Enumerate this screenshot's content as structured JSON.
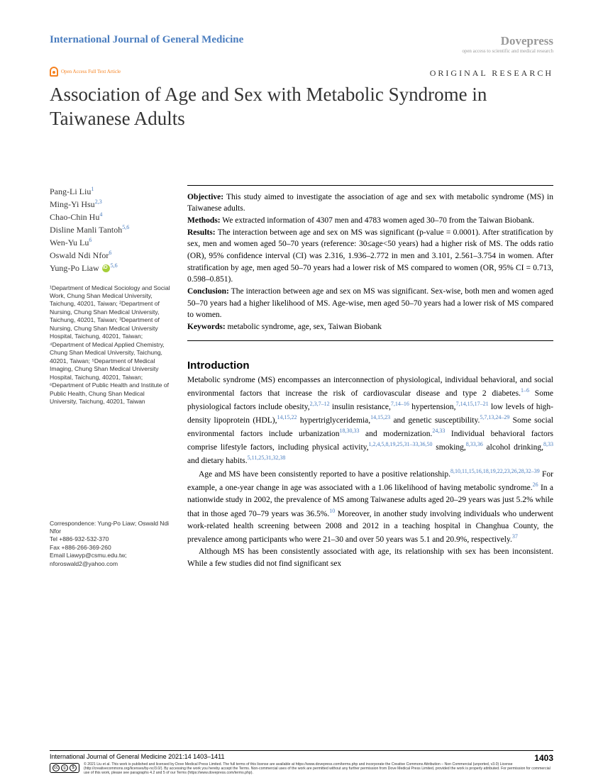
{
  "header": {
    "journal": "International Journal of General Medicine",
    "publisher": "Dovepress",
    "tagline": "open access to scientific and medical research",
    "oa_label": "Open Access Full Text Article",
    "article_type": "ORIGINAL RESEARCH"
  },
  "title": "Association of Age and Sex with Metabolic Syndrome in Taiwanese Adults",
  "authors": [
    {
      "name": "Pang-Li Liu",
      "aff": "1"
    },
    {
      "name": "Ming-Yi Hsu",
      "aff": "2,3"
    },
    {
      "name": "Chao-Chin Hu",
      "aff": "4"
    },
    {
      "name": "Disline Manli Tantoh",
      "aff": "5,6"
    },
    {
      "name": "Wen-Yu Lu",
      "aff": "6"
    },
    {
      "name": "Oswald Ndi Nfor",
      "aff": "6"
    },
    {
      "name": "Yung-Po Liaw",
      "aff": "5,6",
      "orcid": true
    }
  ],
  "affiliations": "¹Department of Medical Sociology and Social Work, Chung Shan Medical University, Taichung, 40201, Taiwan; ²Department of Nursing, Chung Shan Medical University, Taichung, 40201, Taiwan; ³Department of Nursing, Chung Shan Medical University Hospital, Taichung, 40201, Taiwan; ⁴Department of Medical Applied Chemistry, Chung Shan Medical University, Taichung, 40201, Taiwan; ⁵Department of Medical Imaging, Chung Shan Medical University Hospital, Taichung, 40201, Taiwan; ⁶Department of Public Health and Institute of Public Health, Chung Shan Medical University, Taichung, 40201, Taiwan",
  "abstract": {
    "objective_label": "Objective:",
    "objective": " This study aimed to investigate the association of age and sex with metabolic syndrome (MS) in Taiwanese adults.",
    "methods_label": "Methods:",
    "methods": " We extracted information of 4307 men and 4783 women aged 30–70 from the Taiwan Biobank.",
    "results_label": "Results:",
    "results": " The interaction between age and sex on MS was significant (p-value = 0.0001). After stratification by sex, men and women aged 50–70 years (reference: 30≤age<50 years) had a higher risk of MS. The odds ratio (OR), 95% confidence interval (CI) was 2.316, 1.936–2.772 in men and 3.101, 2.561–3.754 in women. After stratification by age, men aged 50–70 years had a lower risk of MS compared to women (OR, 95% CI = 0.713, 0.598–0.851).",
    "conclusion_label": "Conclusion:",
    "conclusion": " The interaction between age and sex on MS was significant. Sex-wise, both men and women aged 50–70 years had a higher likelihood of MS. Age-wise, men aged 50–70 years had a lower risk of MS compared to women.",
    "keywords_label": "Keywords:",
    "keywords": " metabolic syndrome, age, sex, Taiwan Biobank"
  },
  "intro": {
    "heading": "Introduction",
    "p1a": "Metabolic syndrome (MS) encompasses an interconnection of physiological, individual behavioral, and social environmental factors that increase the risk of cardiovascular disease and type 2 diabetes.",
    "c1": "1–6",
    "p1b": " Some physiological factors include obesity,",
    "c2": "2,3,7–12",
    "p1c": " insulin resistance,",
    "c3": "7,14–16",
    "p1d": " hypertension,",
    "c4": "7,14,15,17–21",
    "p1e": " low levels of high-density lipoprotein (HDL),",
    "c5": "14,15,22",
    "p1f": " hypertriglyceridemia,",
    "c6": "14,15,23",
    "p1g": " and genetic susceptibility.",
    "c7": "5,7,13,24–29",
    "p1h": " Some social environmental factors include urbanization",
    "c8": "18,30,33",
    "p1i": " and modernization.",
    "c9": "24,33",
    "p1j": " Individual behavioral factors comprise lifestyle factors, including physical activity,",
    "c10": "1,2,4,5,8,19,25,31–33,36,50",
    "p1k": " smoking,",
    "c11": "8,33,36",
    "p1l": " alcohol drinking,",
    "c12": "8,33",
    "p1m": " and dietary habits.",
    "c13": "5,11,25,31,32,38",
    "p2a": "Age and MS have been consistently reported to have a positive relationship.",
    "c14": "8,10,11,15,16,18,19,22,23,26,28,32–39",
    "p2b": " For example, a one-year change in age was associated with a 1.06 likelihood of having metabolic syndrome.",
    "c15": "26",
    "p2c": " In a nationwide study in 2002, the prevalence of MS among Taiwanese adults aged 20–29 years was just 5.2% while that in those aged 70–79 years was 36.5%.",
    "c16": "10",
    "p2d": " Moreover, in another study involving individuals who underwent work-related health screening between 2008 and 2012 in a teaching hospital in Changhua County, the prevalence among participants who were 21–30 and over 50 years was 5.1 and 20.9%, respectively.",
    "c17": "37",
    "p3": "Although MS has been consistently associated with age, its relationship with sex has been inconsistent. While a few studies did not find significant sex"
  },
  "correspondence": {
    "label": "Correspondence:",
    "names": " Yung-Po Liaw; Oswald Ndi Nfor",
    "tel": "Tel +886-932-532-370",
    "fax": "Fax +886-266-369-260",
    "email": "Email Liawyp@csmu.edu.tw; nforoswald2@yahoo.com"
  },
  "footer": {
    "journal_info": "International Journal of General Medicine 2021:14 1403–1411",
    "page_number": "1403",
    "license": "© 2021 Liu et al. This work is published and licensed by Dove Medical Press Limited. The full terms of this license are available at https://www.dovepress.com/terms.php and incorporate the Creative Commons Attribution – Non Commercial (unported, v3.0) License (http://creativecommons.org/licenses/by-nc/3.0/). By accessing the work you hereby accept the Terms. Non-commercial uses of the work are permitted without any further permission from Dove Medical Press Limited, provided the work is properly attributed. For permission for commercial use of this work, please see paragraphs 4.2 and 5 of our Terms (https://www.dovepress.com/terms.php)."
  },
  "colors": {
    "link_blue": "#4a7dbf",
    "gray": "#999999",
    "orange": "#f58220",
    "orcid_green": "#a6ce39"
  }
}
